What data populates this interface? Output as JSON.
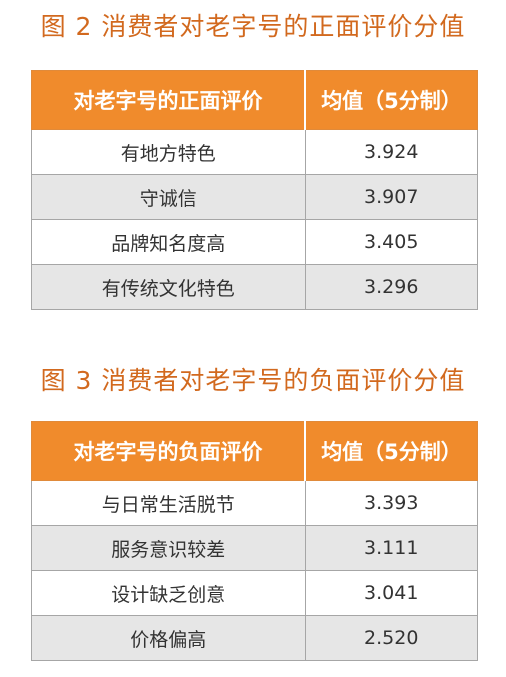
{
  "figure2": {
    "title": "图 2  消费者对老字号的正面评价分值",
    "headers": [
      "对老字号的正面评价",
      "均值（5分制）"
    ],
    "rows": [
      {
        "label": "有地方特色",
        "value": "3.924"
      },
      {
        "label": "守诚信",
        "value": "3.907"
      },
      {
        "label": "品牌知名度高",
        "value": "3.405"
      },
      {
        "label": "有传统文化特色",
        "value": "3.296"
      }
    ]
  },
  "figure3": {
    "title": "图 3  消费者对老字号的负面评价分值",
    "headers": [
      "对老字号的负面评价",
      "均值（5分制）"
    ],
    "rows": [
      {
        "label": "与日常生活脱节",
        "value": "3.393"
      },
      {
        "label": "服务意识较差",
        "value": "3.111"
      },
      {
        "label": "设计缺乏创意",
        "value": "3.041"
      },
      {
        "label": "价格偏高",
        "value": "2.520"
      }
    ]
  },
  "colors": {
    "title": "#d2691e",
    "header_bg": "#f08b2c",
    "header_text": "#ffffff",
    "row_alt": "#e6e6e6",
    "border": "#a6a6a6"
  }
}
